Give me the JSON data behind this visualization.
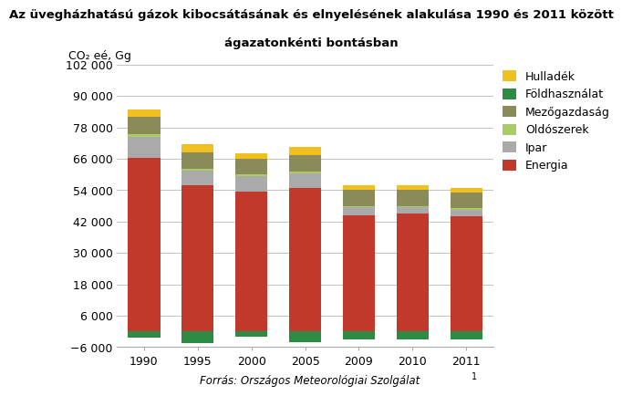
{
  "years": [
    1990,
    1995,
    2000,
    2005,
    2009,
    2010,
    2011
  ],
  "energia": [
    66500,
    56000,
    53500,
    55000,
    44500,
    45000,
    44000
  ],
  "ipar": [
    8000,
    5500,
    6000,
    5500,
    3000,
    2500,
    2500
  ],
  "oldoszerek": [
    1000,
    500,
    500,
    500,
    500,
    500,
    500
  ],
  "mezogazdasag": [
    6500,
    6500,
    6000,
    6500,
    6000,
    6000,
    6000
  ],
  "foldhasznalat": [
    -2500,
    -4500,
    -2000,
    -4000,
    -3000,
    -3000,
    -3000
  ],
  "hulladek": [
    3000,
    3000,
    2000,
    3000,
    2000,
    2000,
    2000
  ],
  "energia_color": "#C0392B",
  "ipar_color": "#AAAAAA",
  "oldoszerek_color": "#AACC66",
  "mezogazdasag_color": "#8B8B5A",
  "foldhasznalat_color": "#2E8B44",
  "hulladek_color": "#F0C020",
  "title_line1": "Az üvegházhatású gázok kibocsátásának és elnyelésének alakulása 1990 és 2011 között",
  "title_line2": "ágazatonkénti bontásban",
  "ylabel": "CO₂ eé, Gg",
  "source_italic": "Forrás: Országos Meteorológiai Szolgálat",
  "source_superscript": "1",
  "legend_labels": [
    "Hulladék",
    "Földhasználat",
    "Mezőgazdaság",
    "Oldószerek",
    "Ipar",
    "Energia"
  ],
  "ylim_min": -6000,
  "ylim_max": 102000,
  "yticks": [
    -6000,
    6000,
    18000,
    30000,
    42000,
    54000,
    66000,
    78000,
    90000,
    102000
  ]
}
